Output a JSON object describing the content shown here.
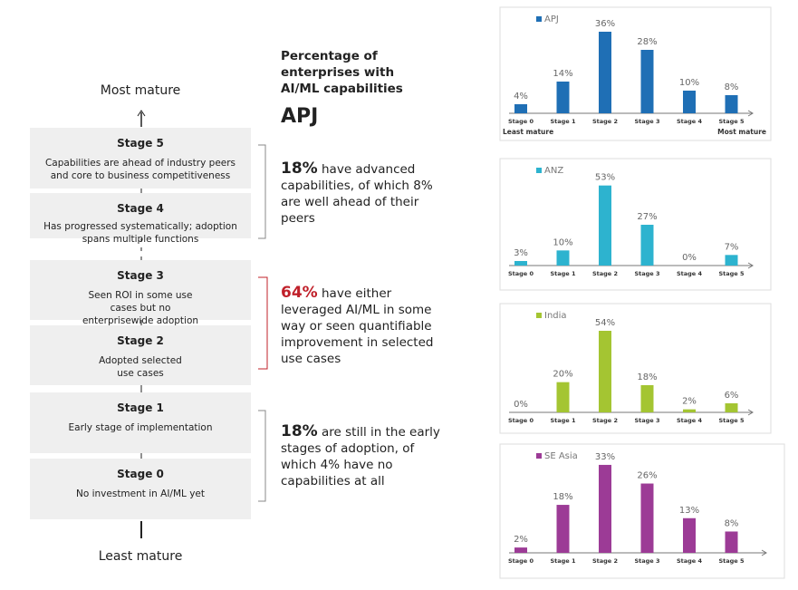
{
  "scale": {
    "top": "Most mature",
    "bottom": "Least mature"
  },
  "stages": [
    {
      "title": "Stage 5",
      "text": "Capabilities are ahead of industry peers and core to business competitiveness"
    },
    {
      "title": "Stage 4",
      "text": "Has progressed systematically; adoption spans multiple functions"
    },
    {
      "title": "Stage 3",
      "text": "Seen ROI in some use cases but no enterprisewide adoption"
    },
    {
      "title": "Stage 2",
      "text": "Adopted selected use cases"
    },
    {
      "title": "Stage 1",
      "text": "Early stage of implementation"
    },
    {
      "title": "Stage 0",
      "text": "No investment in AI/ML yet"
    }
  ],
  "headline": {
    "title": "Percentage of enterprises with AI/ML capabilities",
    "region": "APJ"
  },
  "summaries": [
    {
      "highlight": "18%",
      "text": "have advanced capabilities, of which 8% are well ahead of their peers"
    },
    {
      "highlight": "64%",
      "text": "have either leveraged AI/ML in some way or seen quantifiable improvement in selected use cases"
    },
    {
      "highlight": "18%",
      "text": "are still in the early stages of adoption, of which 4% have no capabilities at all"
    }
  ],
  "chart_data": [
    {
      "type": "bar",
      "categories": [
        "Stage 0",
        "Stage 1",
        "Stage 2",
        "Stage 3",
        "Stage 4",
        "Stage 5"
      ],
      "series": [
        {
          "name": "APJ",
          "color": "#1f6fb5",
          "values": [
            4,
            14,
            36,
            28,
            10,
            8
          ],
          "value_labels": [
            "4%",
            "14%",
            "36%",
            "28%",
            "10%",
            "8%"
          ]
        }
      ],
      "ylim": [
        0,
        40
      ],
      "annotations": [
        "Least mature",
        "Most mature"
      ]
    },
    {
      "type": "bar",
      "categories": [
        "Stage 0",
        "Stage 1",
        "Stage 2",
        "Stage 3",
        "Stage 4",
        "Stage 5"
      ],
      "series": [
        {
          "name": "ANZ",
          "color": "#2db3cf",
          "values": [
            3,
            10,
            53,
            27,
            0,
            7
          ],
          "value_labels": [
            "3%",
            "10%",
            "53%",
            "27%",
            "0%",
            "7%"
          ]
        }
      ],
      "ylim": [
        0,
        60
      ]
    },
    {
      "type": "bar",
      "categories": [
        "Stage 0",
        "Stage 1",
        "Stage 2",
        "Stage 3",
        "Stage 4",
        "Stage 5"
      ],
      "series": [
        {
          "name": "India",
          "color": "#a4c532",
          "values": [
            0,
            20,
            54,
            18,
            2,
            6
          ],
          "value_labels": [
            "0%",
            "20%",
            "54%",
            "18%",
            "2%",
            "6%"
          ]
        }
      ],
      "ylim": [
        0,
        60
      ]
    },
    {
      "type": "bar",
      "categories": [
        "Stage 0",
        "Stage 1",
        "Stage 2",
        "Stage 3",
        "Stage 4",
        "Stage 5"
      ],
      "series": [
        {
          "name": "SE Asia",
          "color": "#9c3b96",
          "values": [
            2,
            18,
            33,
            26,
            13,
            8
          ],
          "value_labels": [
            "2%",
            "18%",
            "33%",
            "26%",
            "13%",
            "8%"
          ]
        }
      ],
      "ylim": [
        0,
        34
      ]
    }
  ]
}
